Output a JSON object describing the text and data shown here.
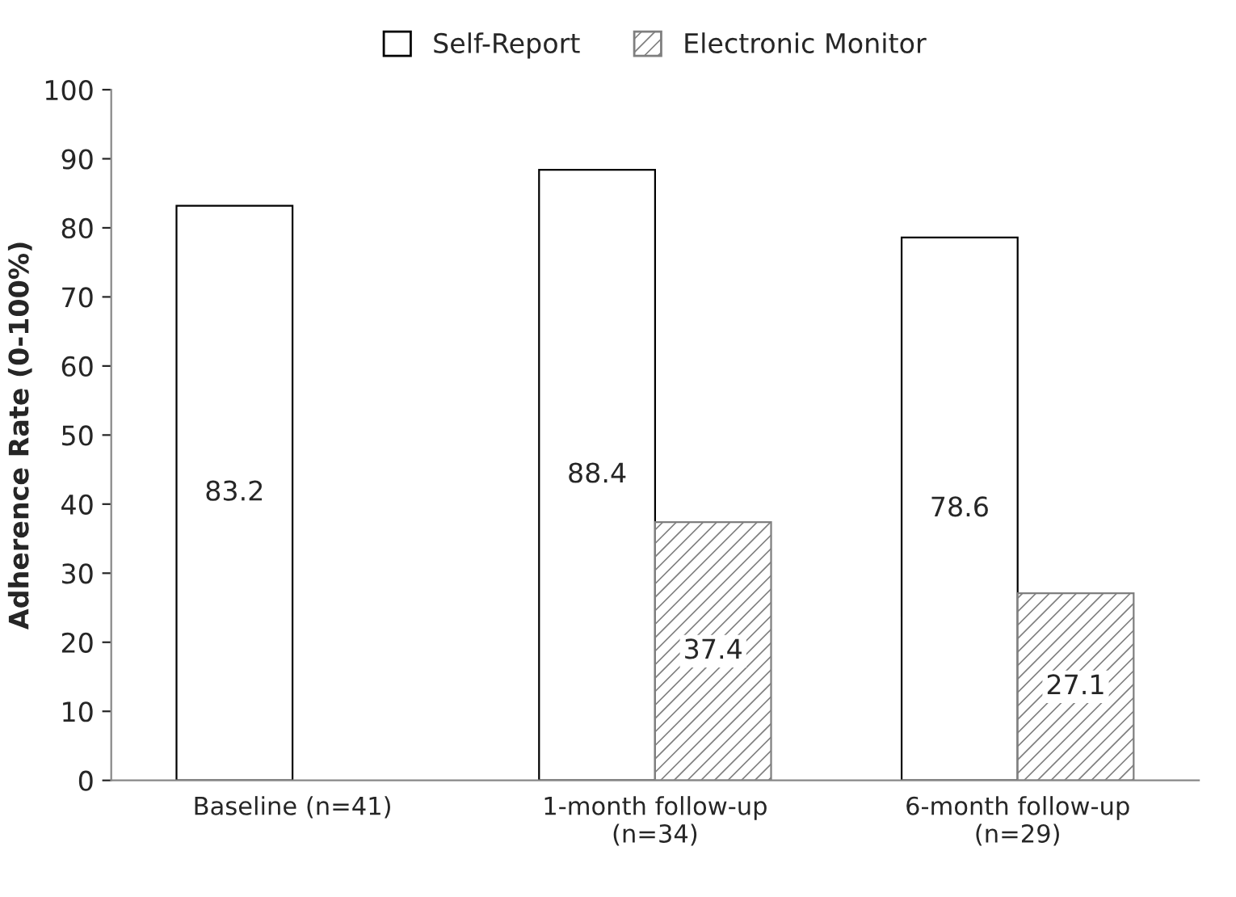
{
  "chart_data": {
    "type": "bar",
    "ylabel": "Adherence Rate (0-100%)",
    "categories": [
      "Baseline (n=41)",
      "1-month follow-up\n(n=34)",
      "6-month follow-up\n(n=29)"
    ],
    "series": [
      {
        "name": "Self-Report",
        "color": "#ffffff",
        "values": [
          83.2,
          88.4,
          78.6
        ]
      },
      {
        "name": "Electronic Monitor",
        "color": "#7f7f7f",
        "values": [
          null,
          37.4,
          27.1
        ]
      }
    ],
    "ylim": [
      0,
      100
    ],
    "yticks": [
      0,
      10,
      20,
      30,
      40,
      50,
      60,
      70,
      80,
      90,
      100
    ],
    "grid": false,
    "legend": "top",
    "data_labels": true
  }
}
